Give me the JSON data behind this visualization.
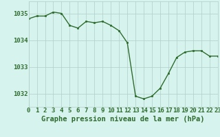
{
  "hours": [
    0,
    1,
    2,
    3,
    4,
    5,
    6,
    7,
    8,
    9,
    10,
    11,
    12,
    13,
    14,
    15,
    16,
    17,
    18,
    19,
    20,
    21,
    22,
    23
  ],
  "pressure": [
    1034.8,
    1034.9,
    1034.9,
    1035.05,
    1035.0,
    1034.55,
    1034.45,
    1034.7,
    1034.65,
    1034.7,
    1034.55,
    1034.35,
    1033.9,
    1031.9,
    1031.8,
    1031.9,
    1032.2,
    1032.75,
    1033.35,
    1033.55,
    1033.6,
    1033.6,
    1033.4,
    1033.4
  ],
  "line_color": "#2d6b2d",
  "marker_color": "#2d6b2d",
  "bg_color": "#d7f3ee",
  "grid_color": "#b0cdc8",
  "title": "Graphe pression niveau de la mer (hPa)",
  "ylabel_ticks": [
    1032,
    1033,
    1034,
    1035
  ],
  "ylim": [
    1031.5,
    1035.45
  ],
  "xlim": [
    0,
    23
  ],
  "title_fontsize": 7.5,
  "tick_fontsize": 6.5
}
